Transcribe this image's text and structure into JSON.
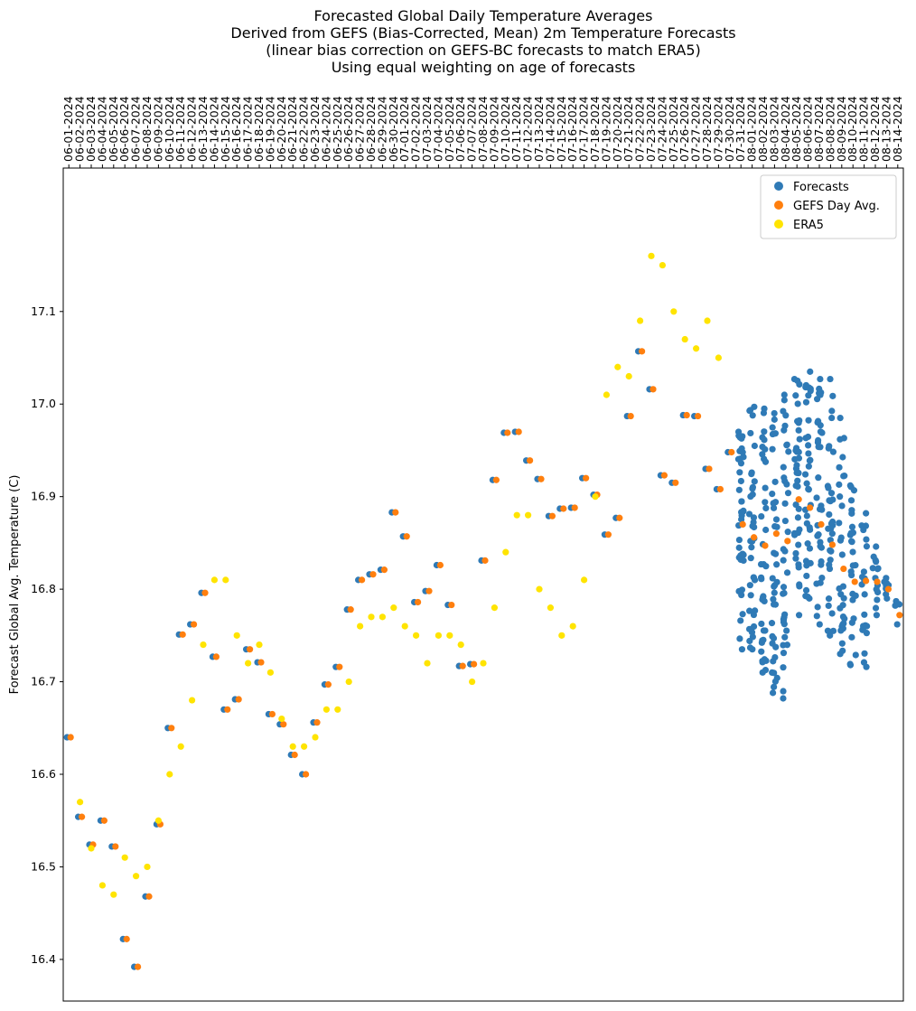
{
  "title": {
    "line1": "Forecasted Global Daily Temperature Averages",
    "line2": "Derived from GEFS (Bias-Corrected, Mean) 2m Temperature Forecasts",
    "line3": "(linear bias correction on GEFS-BC forecasts to match ERA5)",
    "line4": "Using equal weighting on age of forecasts"
  },
  "colors": {
    "forecasts": "#2f7ab6",
    "gefs": "#ff7f0e",
    "era5": "#ffe400"
  },
  "chart_data": {
    "type": "scatter",
    "title": "Forecasted Global Daily Temperature Averages",
    "xlabel": "",
    "ylabel": "Forecast Global Avg. Temperature (C)",
    "ylim": [
      16.355,
      17.255
    ],
    "yticks": [
      16.4,
      16.5,
      16.6,
      16.7,
      16.8,
      16.9,
      17.0,
      17.1
    ],
    "x_tick_position": "top",
    "grid": false,
    "legend": {
      "position": "top-right",
      "entries": [
        "Forecasts",
        "GEFS Day Avg.",
        "ERA5"
      ]
    },
    "dates": [
      "06-01-2024",
      "06-02-2024",
      "06-03-2024",
      "06-04-2024",
      "06-05-2024",
      "06-06-2024",
      "06-07-2024",
      "06-08-2024",
      "06-09-2024",
      "06-10-2024",
      "06-11-2024",
      "06-12-2024",
      "06-13-2024",
      "06-14-2024",
      "06-15-2024",
      "06-16-2024",
      "06-17-2024",
      "06-18-2024",
      "06-19-2024",
      "06-20-2024",
      "06-21-2024",
      "06-22-2024",
      "06-23-2024",
      "06-24-2024",
      "06-25-2024",
      "06-26-2024",
      "06-27-2024",
      "06-28-2024",
      "06-29-2024",
      "06-30-2024",
      "07-01-2024",
      "07-02-2024",
      "07-03-2024",
      "07-04-2024",
      "07-05-2024",
      "07-06-2024",
      "07-07-2024",
      "07-08-2024",
      "07-09-2024",
      "07-10-2024",
      "07-11-2024",
      "07-12-2024",
      "07-13-2024",
      "07-14-2024",
      "07-15-2024",
      "07-16-2024",
      "07-17-2024",
      "07-18-2024",
      "07-19-2024",
      "07-20-2024",
      "07-21-2024",
      "07-22-2024",
      "07-23-2024",
      "07-24-2024",
      "07-25-2024",
      "07-26-2024",
      "07-27-2024",
      "07-28-2024",
      "07-29-2024",
      "07-30-2024",
      "07-31-2024",
      "08-01-2024",
      "08-02-2024",
      "08-03-2024",
      "08-04-2024",
      "08-05-2024",
      "08-06-2024",
      "08-07-2024",
      "08-08-2024",
      "08-09-2024",
      "08-10-2024",
      "08-11-2024",
      "08-12-2024",
      "08-13-2024",
      "08-14-2024"
    ],
    "gefs_day_avg": [
      16.64,
      16.554,
      16.524,
      16.55,
      16.522,
      16.422,
      16.392,
      16.468,
      16.546,
      16.65,
      16.751,
      16.762,
      16.796,
      16.727,
      16.67,
      16.681,
      16.735,
      16.721,
      16.665,
      16.654,
      16.621,
      16.6,
      16.656,
      16.697,
      16.716,
      16.778,
      16.81,
      16.816,
      16.821,
      16.883,
      16.857,
      16.786,
      16.798,
      16.826,
      16.783,
      16.717,
      16.719,
      16.831,
      16.918,
      16.969,
      16.97,
      16.939,
      16.919,
      16.879,
      16.887,
      16.888,
      16.92,
      16.902,
      16.859,
      16.877,
      16.987,
      17.057,
      17.016,
      16.923,
      16.915,
      16.988,
      16.987,
      16.93,
      16.908,
      16.948,
      16.87,
      16.856,
      16.847,
      16.86,
      16.852,
      16.897,
      16.888,
      16.87,
      16.848,
      16.822,
      16.808,
      16.809,
      16.808,
      16.8,
      16.772
    ],
    "era5": [
      null,
      16.57,
      16.52,
      16.48,
      16.47,
      16.51,
      16.49,
      16.5,
      16.55,
      16.6,
      16.63,
      16.68,
      16.74,
      16.81,
      16.81,
      16.75,
      16.72,
      16.74,
      16.71,
      16.66,
      16.63,
      16.63,
      16.64,
      16.67,
      16.67,
      16.7,
      16.76,
      16.77,
      16.77,
      16.78,
      16.76,
      16.75,
      16.72,
      16.75,
      16.75,
      16.74,
      16.7,
      16.72,
      16.78,
      16.84,
      16.88,
      16.88,
      16.8,
      16.78,
      16.75,
      16.76,
      16.81,
      16.9,
      17.01,
      17.04,
      17.03,
      17.09,
      17.16,
      17.15,
      17.1,
      17.07,
      17.06,
      17.09,
      17.05,
      null,
      null,
      null,
      null,
      null,
      null,
      null,
      null,
      null,
      null,
      null,
      null,
      null,
      null,
      null,
      null
    ],
    "forecast_ranges": [
      {
        "date": "07-31-2024",
        "count": 38,
        "min": 16.735,
        "max": 16.97
      },
      {
        "date": "08-01-2024",
        "count": 38,
        "min": 16.735,
        "max": 16.997
      },
      {
        "date": "08-02-2024",
        "count": 38,
        "min": 16.71,
        "max": 16.995
      },
      {
        "date": "08-03-2024",
        "count": 38,
        "min": 16.688,
        "max": 16.99
      },
      {
        "date": "08-04-2024",
        "count": 38,
        "min": 16.682,
        "max": 17.01
      },
      {
        "date": "08-05-2024",
        "count": 38,
        "min": 16.772,
        "max": 17.027
      },
      {
        "date": "08-06-2024",
        "count": 36,
        "min": 16.79,
        "max": 17.035
      },
      {
        "date": "08-07-2024",
        "count": 34,
        "min": 16.762,
        "max": 17.027
      },
      {
        "date": "08-08-2024",
        "count": 32,
        "min": 16.75,
        "max": 17.027
      },
      {
        "date": "08-09-2024",
        "count": 30,
        "min": 16.73,
        "max": 16.985
      },
      {
        "date": "08-10-2024",
        "count": 26,
        "min": 16.718,
        "max": 16.912
      },
      {
        "date": "08-11-2024",
        "count": 22,
        "min": 16.716,
        "max": 16.882
      },
      {
        "date": "08-12-2024",
        "count": 14,
        "min": 16.772,
        "max": 16.846
      },
      {
        "date": "08-13-2024",
        "count": 8,
        "min": 16.79,
        "max": 16.812
      },
      {
        "date": "08-14-2024",
        "count": 4,
        "min": 16.762,
        "max": 16.787
      }
    ]
  }
}
